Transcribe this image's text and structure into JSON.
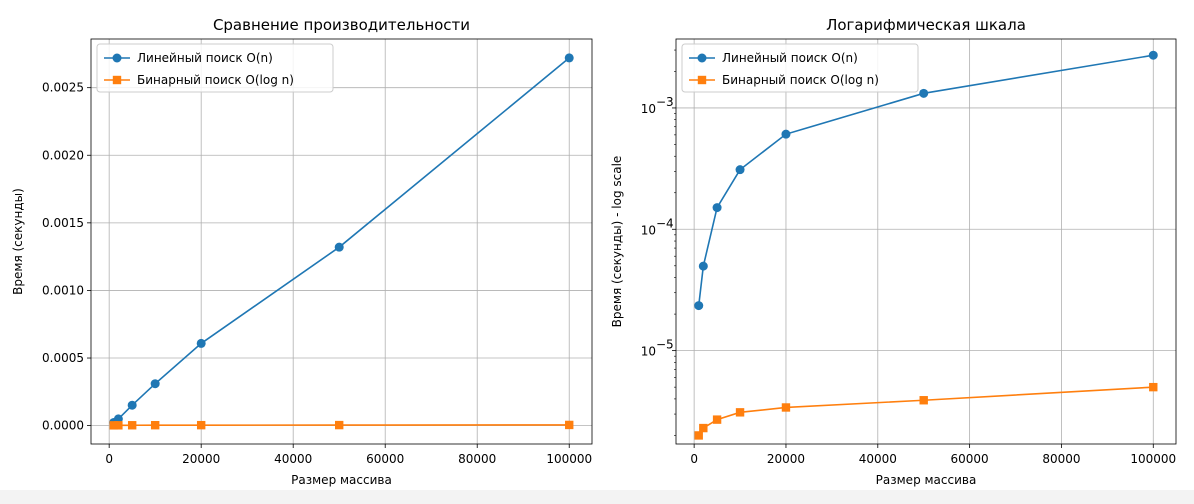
{
  "chart_data": [
    {
      "type": "line",
      "title": "Сравнение производительности",
      "xlabel": "Размер массива",
      "ylabel": "Время (секунды)",
      "yscale": "linear",
      "xlim": [
        -3950,
        104950
      ],
      "ylim": [
        -0.000136,
        0.00286
      ],
      "xticks": [
        0,
        20000,
        40000,
        60000,
        80000,
        100000
      ],
      "xtick_labels": [
        "0",
        "20000",
        "40000",
        "60000",
        "80000",
        "100000"
      ],
      "yticks": [
        0.0,
        0.0005,
        0.001,
        0.0015,
        0.002,
        0.0025
      ],
      "ytick_labels": [
        "0.0000",
        "0.0005",
        "0.0010",
        "0.0015",
        "0.0020",
        "0.0025"
      ],
      "grid": true,
      "legend_position": "upper-left",
      "x": [
        1000,
        2000,
        5000,
        10000,
        20000,
        50000,
        100000
      ],
      "series": [
        {
          "name": "Линейный поиск O(n)",
          "color": "#1f77b4",
          "marker": "circle",
          "values": [
            2.35e-05,
            4.97e-05,
            0.000151,
            0.00031,
            0.000608,
            0.00132,
            0.00272
          ]
        },
        {
          "name": "Бинарный поиск O(log n)",
          "color": "#ff7f0e",
          "marker": "square",
          "values": [
            2e-06,
            2.3e-06,
            2.7e-06,
            3.1e-06,
            3.4e-06,
            3.9e-06,
            5e-06
          ]
        }
      ]
    },
    {
      "type": "line",
      "title": "Логарифмическая шкала",
      "xlabel": "Размер массива",
      "ylabel": "Время (секунды) - log scale",
      "yscale": "log",
      "xlim": [
        -3950,
        104950
      ],
      "ylim": [
        1.7e-06,
        0.0037
      ],
      "xticks": [
        0,
        20000,
        40000,
        60000,
        80000,
        100000
      ],
      "xtick_labels": [
        "0",
        "20000",
        "40000",
        "60000",
        "80000",
        "100000"
      ],
      "yticks": [
        1e-05,
        0.0001,
        0.001
      ],
      "ytick_labels": [
        {
          "base": "10",
          "exp": "−5"
        },
        {
          "base": "10",
          "exp": "−4"
        },
        {
          "base": "10",
          "exp": "−3"
        }
      ],
      "grid": true,
      "legend_position": "upper-left",
      "x": [
        1000,
        2000,
        5000,
        10000,
        20000,
        50000,
        100000
      ],
      "series": [
        {
          "name": "Линейный поиск O(n)",
          "color": "#1f77b4",
          "marker": "circle",
          "values": [
            2.35e-05,
            4.97e-05,
            0.000151,
            0.00031,
            0.000608,
            0.00132,
            0.00272
          ]
        },
        {
          "name": "Бинарный поиск O(log n)",
          "color": "#ff7f0e",
          "marker": "square",
          "values": [
            2e-06,
            2.3e-06,
            2.7e-06,
            3.1e-06,
            3.4e-06,
            3.9e-06,
            5e-06
          ]
        }
      ]
    }
  ]
}
